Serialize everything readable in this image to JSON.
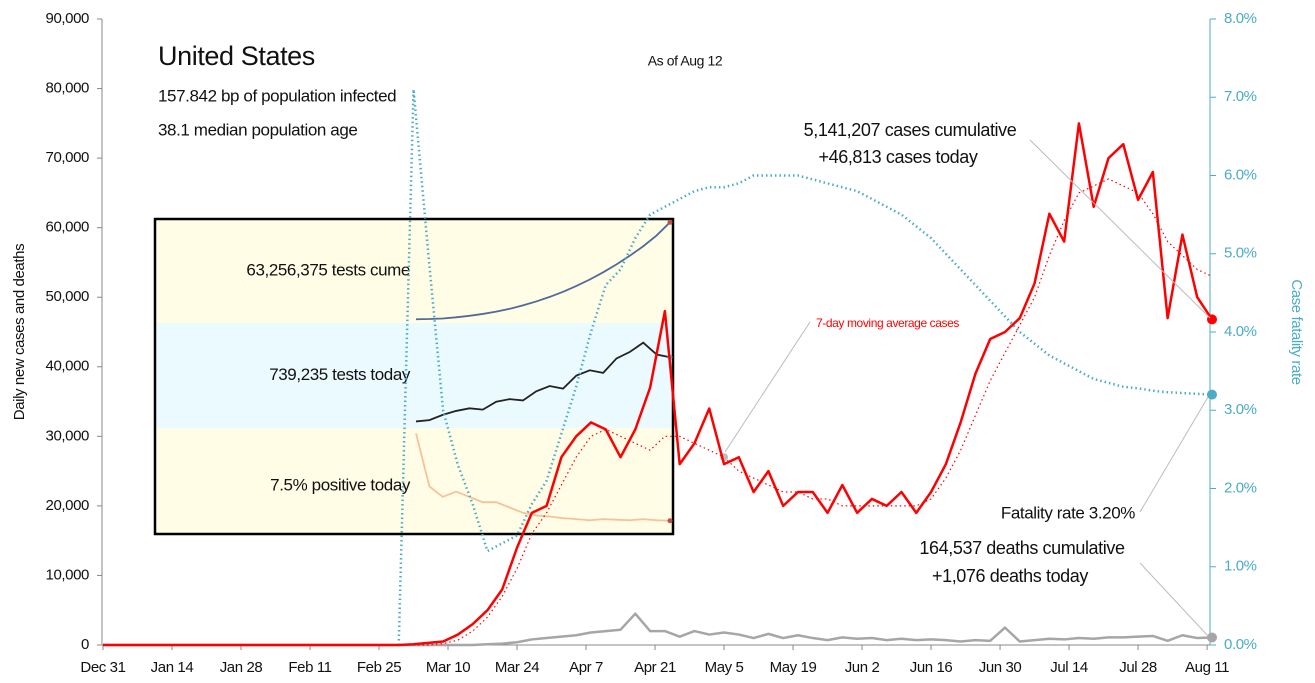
{
  "chart_data": {
    "type": "line",
    "title": "United States",
    "annotations": [
      "157.842 bp of population infected",
      "38.1 median population age",
      "As of Aug 12",
      "5,141,207 cases cumulative",
      "+46,813 cases today",
      "7-day moving average cases",
      "Fatality rate 3.20%",
      "164,537 deaths cumulative",
      "+1,076 deaths today"
    ],
    "ylabel": "Daily new cases and deaths",
    "y2label": "Case fatality rate",
    "xlim": [
      "Dec 31",
      "Aug 12"
    ],
    "xticks": [
      "Dec 31",
      "Jan 14",
      "Jan 28",
      "Feb 11",
      "Feb 25",
      "Mar 10",
      "Mar 24",
      "Apr 7",
      "Apr 21",
      "May 5",
      "May 19",
      "Jun 2",
      "Jun 16",
      "Jun 30",
      "Jul 14",
      "Jul 28",
      "Aug 11"
    ],
    "ylim": [
      0,
      90000
    ],
    "yticks": [
      0,
      {
        "value": 10000,
        "label": "10,000"
      },
      {
        "value": 20000,
        "label": "20,000"
      },
      {
        "value": 30000,
        "label": "30,000"
      },
      {
        "value": 40000,
        "label": "40,000"
      },
      {
        "value": 50000,
        "label": "50,000"
      },
      {
        "value": 60000,
        "label": "60,000"
      },
      {
        "value": 70000,
        "label": "70,000"
      },
      {
        "value": 80000,
        "label": "80,000"
      },
      {
        "value": 90000,
        "label": "90,000"
      }
    ],
    "y2lim": [
      0,
      8
    ],
    "y2ticks": [
      {
        "value": 0,
        "label": "0.0%"
      },
      {
        "value": 1,
        "label": "1.0%"
      },
      {
        "value": 2,
        "label": "2.0%"
      },
      {
        "value": 3,
        "label": "3.0%"
      },
      {
        "value": 4,
        "label": "4.0%"
      },
      {
        "value": 5,
        "label": "5.0%"
      },
      {
        "value": 6,
        "label": "6.0%"
      },
      {
        "value": 7,
        "label": "7.0%"
      },
      {
        "value": 8,
        "label": "8.0%"
      }
    ],
    "x": [
      "Dec 31",
      "Feb 26",
      "Feb 29",
      "Mar 3",
      "Mar 6",
      "Mar 9",
      "Mar 12",
      "Mar 15",
      "Mar 18",
      "Mar 21",
      "Mar 24",
      "Mar 27",
      "Mar 30",
      "Apr 2",
      "Apr 5",
      "Apr 8",
      "Apr 11",
      "Apr 14",
      "Apr 17",
      "Apr 20",
      "Apr 23",
      "Apr 26",
      "Apr 29",
      "May 2",
      "May 5",
      "May 8",
      "May 11",
      "May 14",
      "May 17",
      "May 20",
      "May 23",
      "May 26",
      "May 29",
      "Jun 1",
      "Jun 4",
      "Jun 7",
      "Jun 10",
      "Jun 13",
      "Jun 16",
      "Jun 19",
      "Jun 22",
      "Jun 25",
      "Jun 28",
      "Jul 1",
      "Jul 4",
      "Jul 7",
      "Jul 10",
      "Jul 13",
      "Jul 16",
      "Jul 19",
      "Jul 22",
      "Jul 25",
      "Jul 28",
      "Jul 31",
      "Aug 3",
      "Aug 6",
      "Aug 9",
      "Aug 12"
    ],
    "series": [
      {
        "color": "#a6a6a6",
        "dash": "solid",
        "width": 2.5,
        "axis": "y",
        "values": [
          0,
          0,
          0,
          0,
          0,
          0,
          0,
          0,
          100,
          200,
          400,
          800,
          1000,
          1200,
          1400,
          1800,
          2000,
          2200,
          4500,
          2000,
          2000,
          1200,
          2000,
          1500,
          1800,
          1500,
          1000,
          1600,
          1000,
          1400,
          1000,
          700,
          1100,
          900,
          1000,
          700,
          900,
          700,
          800,
          700,
          500,
          700,
          600,
          2500,
          500,
          700,
          900,
          800,
          1000,
          900,
          1100,
          1100,
          1200,
          1300,
          600,
          1400,
          1000,
          1076
        ]
      },
      {
        "color": "#4bacc6",
        "dash": "dotted",
        "width": 2.5,
        "axis": "y2",
        "values": [
          null,
          null,
          0,
          7.1,
          5.0,
          3.0,
          2.3,
          1.8,
          1.2,
          1.3,
          1.4,
          1.8,
          2.1,
          2.7,
          3.3,
          4.0,
          4.6,
          4.8,
          5.2,
          5.5,
          5.6,
          5.7,
          5.8,
          5.85,
          5.85,
          5.9,
          6.0,
          6.0,
          6.0,
          6.0,
          5.95,
          5.9,
          5.85,
          5.8,
          5.7,
          5.6,
          5.5,
          5.35,
          5.2,
          5.0,
          4.8,
          4.6,
          4.4,
          4.2,
          4.0,
          3.85,
          3.7,
          3.6,
          3.5,
          3.4,
          3.35,
          3.3,
          3.28,
          3.25,
          3.23,
          3.22,
          3.21,
          3.2
        ]
      },
      {
        "color": "#ff0000",
        "dash": "dotted",
        "width": 1.2,
        "axis": "y",
        "values": [
          0,
          0,
          0,
          0,
          0,
          200,
          700,
          2000,
          4000,
          7000,
          11000,
          16000,
          19000,
          23000,
          27000,
          30000,
          31000,
          30000,
          29000,
          28000,
          30000,
          30000,
          29000,
          28000,
          27000,
          25000,
          24000,
          23000,
          22000,
          22000,
          21000,
          21000,
          20000,
          20000,
          20000,
          20000,
          20000,
          20000,
          21000,
          24000,
          28000,
          33000,
          38000,
          42000,
          46000,
          50000,
          56000,
          61000,
          65000,
          66000,
          67000,
          66000,
          65000,
          62000,
          58000,
          56000,
          54000,
          53000
        ]
      },
      {
        "color": "#ff0000",
        "dash": "solid",
        "width": 2.5,
        "axis": "y",
        "values": [
          0,
          0,
          0,
          100,
          300,
          500,
          1500,
          3000,
          5000,
          8000,
          14000,
          19000,
          20000,
          27000,
          30000,
          32000,
          31000,
          27000,
          31000,
          37000,
          48000,
          26000,
          29000,
          34000,
          26000,
          27000,
          22000,
          25000,
          20000,
          22000,
          22000,
          19000,
          23000,
          19000,
          21000,
          20000,
          22000,
          19000,
          22000,
          26000,
          32000,
          39000,
          44000,
          45000,
          47000,
          52000,
          62000,
          58000,
          75000,
          63000,
          70000,
          72000,
          64000,
          68000,
          47000,
          59000,
          50000,
          46813
        ]
      }
    ],
    "inset": {
      "series": [
        {
          "label": "63,256,375 tests cume",
          "color": "#4f6b9a",
          "ylim": [
            10000000,
            65000000
          ],
          "values": [
            12000000,
            12100000,
            12400000,
            13000000,
            13800000,
            14800000,
            16000000,
            17500000,
            19300000,
            21400000,
            23800000,
            26500000,
            29600000,
            33000000,
            36800000,
            41000000,
            45600000,
            50600000,
            56300000,
            63256375
          ]
        },
        {
          "label": "739,235 tests today",
          "color": "#222222",
          "ylim": [
            200000,
            1000000
          ],
          "values": [
            250000,
            260000,
            300000,
            330000,
            350000,
            340000,
            400000,
            420000,
            410000,
            480000,
            520000,
            500000,
            600000,
            640000,
            620000,
            730000,
            780000,
            850000,
            760000,
            739235
          ]
        },
        {
          "label": "7.5% positive today",
          "color": "#f8c19a",
          "ylim": [
            5,
            25
          ],
          "values": [
            24,
            14,
            12,
            13,
            12,
            11,
            11,
            10,
            9,
            8.5,
            8.3,
            8,
            7.8,
            7.6,
            7.8,
            7.7,
            7.6,
            7.8,
            7.6,
            7.5
          ]
        }
      ]
    }
  }
}
